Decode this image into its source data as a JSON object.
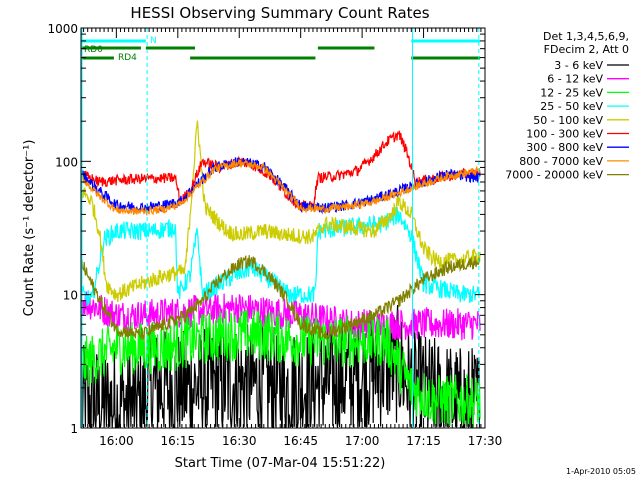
{
  "chart_data": {
    "type": "line",
    "title": "HESSI Observing Summary Count Rates",
    "xlabel": "Start Time (07-Mar-04 15:51:22)",
    "ylabel": "Count Rate (s⁻¹ detector⁻¹)",
    "yscale": "log",
    "ylim": [
      1,
      1000
    ],
    "xlim": [
      15.8561,
      17.5
    ],
    "x_ticks": [
      {
        "x": 16.0,
        "label": "16:00"
      },
      {
        "x": 16.25,
        "label": "16:15"
      },
      {
        "x": 16.5,
        "label": "16:30"
      },
      {
        "x": 16.75,
        "label": "16:45"
      },
      {
        "x": 17.0,
        "label": "17:00"
      },
      {
        "x": 17.25,
        "label": "17:15"
      },
      {
        "x": 17.5,
        "label": "17:30"
      }
    ],
    "y_ticks": [
      {
        "y": 1,
        "label": "1"
      },
      {
        "y": 10,
        "label": "10"
      },
      {
        "y": 100,
        "label": "100"
      },
      {
        "y": 1000,
        "label": "1000"
      }
    ],
    "legend_header": [
      "Det 1,3,4,5,6,9,",
      "FDecim 2, Att 0"
    ],
    "legend_placement": "right",
    "series": [
      {
        "name": "3 - 6 keV",
        "color": "#000000",
        "noise": 0.45,
        "knots": [
          [
            15.86,
            1.5
          ],
          [
            16.1,
            1.5
          ],
          [
            16.15,
            2
          ],
          [
            16.3,
            2
          ],
          [
            16.5,
            2.2
          ],
          [
            16.7,
            2
          ],
          [
            16.85,
            2.2
          ],
          [
            17.0,
            2.5
          ],
          [
            17.15,
            3
          ],
          [
            17.2,
            2
          ],
          [
            17.4,
            1.5
          ],
          [
            17.48,
            1.5
          ]
        ]
      },
      {
        "name": "6 - 12 keV",
        "color": "#ff00ff",
        "noise": 0.12,
        "knots": [
          [
            15.86,
            9
          ],
          [
            16.0,
            7
          ],
          [
            16.1,
            7
          ],
          [
            16.3,
            7.5
          ],
          [
            16.5,
            8
          ],
          [
            16.6,
            7.5
          ],
          [
            16.75,
            7
          ],
          [
            16.95,
            6
          ],
          [
            17.1,
            6
          ],
          [
            17.2,
            6
          ],
          [
            17.3,
            6
          ],
          [
            17.4,
            6
          ],
          [
            17.48,
            6
          ]
        ]
      },
      {
        "name": "12 - 25 keV",
        "color": "#00ff00",
        "noise": 0.2,
        "knots": [
          [
            15.86,
            3
          ],
          [
            16.0,
            4
          ],
          [
            16.2,
            4
          ],
          [
            16.3,
            4.5
          ],
          [
            16.45,
            5
          ],
          [
            16.6,
            5
          ],
          [
            16.75,
            4.5
          ],
          [
            16.95,
            4.5
          ],
          [
            17.1,
            4.5
          ],
          [
            17.2,
            2
          ],
          [
            17.3,
            1.6
          ],
          [
            17.48,
            1.6
          ]
        ]
      },
      {
        "name": "25 - 50 keV",
        "color": "#00ffff",
        "noise": 0.07,
        "knots": [
          [
            15.86,
            10
          ],
          [
            15.9,
            9
          ],
          [
            15.95,
            26
          ],
          [
            16.0,
            30
          ],
          [
            16.05,
            30
          ],
          [
            16.15,
            30
          ],
          [
            16.24,
            32
          ],
          [
            16.25,
            10
          ],
          [
            16.3,
            14
          ],
          [
            16.33,
            30
          ],
          [
            16.35,
            10
          ],
          [
            16.45,
            13
          ],
          [
            16.55,
            16
          ],
          [
            16.65,
            12
          ],
          [
            16.7,
            10
          ],
          [
            16.75,
            10
          ],
          [
            16.81,
            10
          ],
          [
            16.82,
            30
          ],
          [
            16.95,
            32
          ],
          [
            17.08,
            34
          ],
          [
            17.15,
            40
          ],
          [
            17.2,
            28
          ],
          [
            17.25,
            12
          ],
          [
            17.4,
            10
          ],
          [
            17.48,
            10
          ]
        ]
      },
      {
        "name": "50 - 100 keV",
        "color": "#cccc00",
        "noise": 0.06,
        "knots": [
          [
            15.86,
            60
          ],
          [
            15.9,
            50
          ],
          [
            15.93,
            30
          ],
          [
            15.96,
            12
          ],
          [
            16.0,
            10
          ],
          [
            16.1,
            12
          ],
          [
            16.2,
            14
          ],
          [
            16.28,
            15
          ],
          [
            16.3,
            40
          ],
          [
            16.33,
            200
          ],
          [
            16.36,
            45
          ],
          [
            16.45,
            30
          ],
          [
            16.5,
            28
          ],
          [
            16.6,
            30
          ],
          [
            16.7,
            28
          ],
          [
            16.8,
            27
          ],
          [
            16.85,
            34
          ],
          [
            16.95,
            32
          ],
          [
            17.05,
            30
          ],
          [
            17.12,
            40
          ],
          [
            17.15,
            50
          ],
          [
            17.2,
            40
          ],
          [
            17.25,
            22
          ],
          [
            17.3,
            18
          ],
          [
            17.4,
            18
          ],
          [
            17.48,
            20
          ]
        ]
      },
      {
        "name": "100 - 300 keV",
        "color": "#ff0000",
        "noise": 0.04,
        "knots": [
          [
            15.86,
            80
          ],
          [
            15.93,
            70
          ],
          [
            16.0,
            72
          ],
          [
            16.1,
            74
          ],
          [
            16.24,
            75
          ],
          [
            16.26,
            50
          ],
          [
            16.3,
            60
          ],
          [
            16.35,
            100
          ],
          [
            16.42,
            90
          ],
          [
            16.5,
            100
          ],
          [
            16.55,
            95
          ],
          [
            16.62,
            80
          ],
          [
            16.7,
            55
          ],
          [
            16.75,
            46
          ],
          [
            16.8,
            46
          ],
          [
            16.82,
            75
          ],
          [
            16.9,
            78
          ],
          [
            16.98,
            85
          ],
          [
            17.05,
            110
          ],
          [
            17.1,
            140
          ],
          [
            17.15,
            160
          ],
          [
            17.18,
            120
          ],
          [
            17.22,
            70
          ],
          [
            17.3,
            75
          ],
          [
            17.4,
            80
          ],
          [
            17.48,
            80
          ]
        ]
      },
      {
        "name": "300 - 800 keV",
        "color": "#0000ff",
        "noise": 0.04,
        "knots": [
          [
            15.86,
            80
          ],
          [
            15.93,
            60
          ],
          [
            16.0,
            47
          ],
          [
            16.1,
            45
          ],
          [
            16.2,
            47
          ],
          [
            16.26,
            50
          ],
          [
            16.32,
            65
          ],
          [
            16.4,
            90
          ],
          [
            16.5,
            100
          ],
          [
            16.6,
            92
          ],
          [
            16.68,
            65
          ],
          [
            16.75,
            46
          ],
          [
            16.85,
            45
          ],
          [
            16.95,
            47
          ],
          [
            17.05,
            52
          ],
          [
            17.15,
            60
          ],
          [
            17.25,
            70
          ],
          [
            17.35,
            80
          ],
          [
            17.48,
            75
          ]
        ]
      },
      {
        "name": "800 - 7000 keV",
        "color": "#ff8800",
        "noise": 0.03,
        "knots": [
          [
            15.86,
            75
          ],
          [
            15.93,
            55
          ],
          [
            16.0,
            43
          ],
          [
            16.1,
            42
          ],
          [
            16.2,
            44
          ],
          [
            16.26,
            48
          ],
          [
            16.32,
            62
          ],
          [
            16.4,
            88
          ],
          [
            16.5,
            98
          ],
          [
            16.6,
            90
          ],
          [
            16.68,
            63
          ],
          [
            16.75,
            45
          ],
          [
            16.85,
            44
          ],
          [
            16.95,
            46
          ],
          [
            17.05,
            50
          ],
          [
            17.15,
            58
          ],
          [
            17.25,
            68
          ],
          [
            17.35,
            78
          ],
          [
            17.48,
            85
          ]
        ]
      },
      {
        "name": "7000 - 20000 keV",
        "color": "#808000",
        "noise": 0.05,
        "knots": [
          [
            15.86,
            17
          ],
          [
            15.9,
            12
          ],
          [
            15.95,
            8
          ],
          [
            16.0,
            5.5
          ],
          [
            16.1,
            5
          ],
          [
            16.2,
            6
          ],
          [
            16.28,
            7
          ],
          [
            16.35,
            9
          ],
          [
            16.42,
            13
          ],
          [
            16.5,
            17
          ],
          [
            16.55,
            18
          ],
          [
            16.62,
            14
          ],
          [
            16.7,
            9
          ],
          [
            16.75,
            6
          ],
          [
            16.85,
            5
          ],
          [
            16.95,
            6
          ],
          [
            17.05,
            7
          ],
          [
            17.15,
            9
          ],
          [
            17.25,
            13
          ],
          [
            17.35,
            16
          ],
          [
            17.48,
            18
          ]
        ]
      }
    ],
    "vlines": [
      {
        "x": 15.86,
        "style": "solid"
      },
      {
        "x": 16.125,
        "style": "dashed"
      },
      {
        "x": 17.205,
        "style": "solid"
      },
      {
        "x": 17.475,
        "style": "dashed"
      }
    ],
    "state_bars": [
      {
        "label": "N",
        "color": "#00ffff",
        "row": 1,
        "segments": [
          [
            15.86,
            16.12
          ],
          [
            17.2,
            17.48
          ]
        ]
      },
      {
        "label": "RD0",
        "color": "#008000",
        "row": 2,
        "segments": [
          [
            15.86,
            16.1
          ],
          [
            16.12,
            16.32
          ],
          [
            16.82,
            17.05
          ]
        ]
      },
      {
        "label": "RD4",
        "color": "#008000",
        "row": 3,
        "segments": [
          [
            15.86,
            15.99
          ],
          [
            16.3,
            16.81
          ],
          [
            17.2,
            17.48
          ]
        ]
      }
    ],
    "footer_date": "1-Apr-2010 05:05"
  }
}
